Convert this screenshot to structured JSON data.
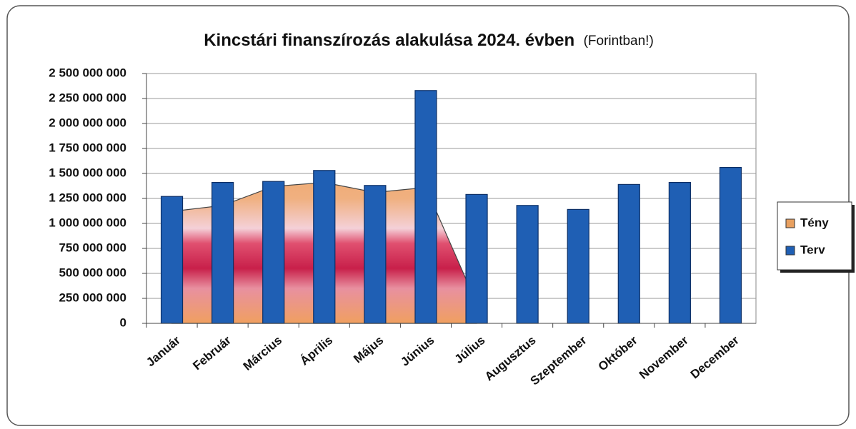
{
  "chart_data": {
    "type": "bar",
    "title": "Kincstári finanszírozás alakulása  2024. évben",
    "subtitle": "(Forintban!)",
    "categories": [
      "Január",
      "Február",
      "Március",
      "Április",
      "Május",
      "Június",
      "Július",
      "Augusztus",
      "Szeptember",
      "Október",
      "November",
      "December"
    ],
    "series": [
      {
        "name": "Tény",
        "type": "area",
        "color": "#e8a060",
        "values": [
          1120000000,
          1180000000,
          1370000000,
          1410000000,
          1310000000,
          1360000000,
          200000000,
          null,
          null,
          null,
          null,
          null
        ]
      },
      {
        "name": "Terv",
        "type": "bar",
        "color": "#1f5fb4",
        "values": [
          1270000000,
          1410000000,
          1420000000,
          1530000000,
          1380000000,
          2330000000,
          1290000000,
          1180000000,
          1140000000,
          1390000000,
          1410000000,
          1560000000
        ]
      }
    ],
    "ylim": [
      0,
      2500000000
    ],
    "yticks": [
      {
        "value": 0,
        "label": "0"
      },
      {
        "value": 250000000,
        "label": "250 000 000"
      },
      {
        "value": 500000000,
        "label": "500 000 000"
      },
      {
        "value": 750000000,
        "label": "750 000 000"
      },
      {
        "value": 1000000000,
        "label": "1 000 000 000"
      },
      {
        "value": 1250000000,
        "label": "1 250 000 000"
      },
      {
        "value": 1500000000,
        "label": "1 500 000 000"
      },
      {
        "value": 1750000000,
        "label": "1 750 000 000"
      },
      {
        "value": 2000000000,
        "label": "2 000 000 000"
      },
      {
        "value": 2250000000,
        "label": "2 250 000 000"
      },
      {
        "value": 2500000000,
        "label": "2 500 000 000"
      }
    ],
    "grid": true,
    "legend": "right"
  }
}
